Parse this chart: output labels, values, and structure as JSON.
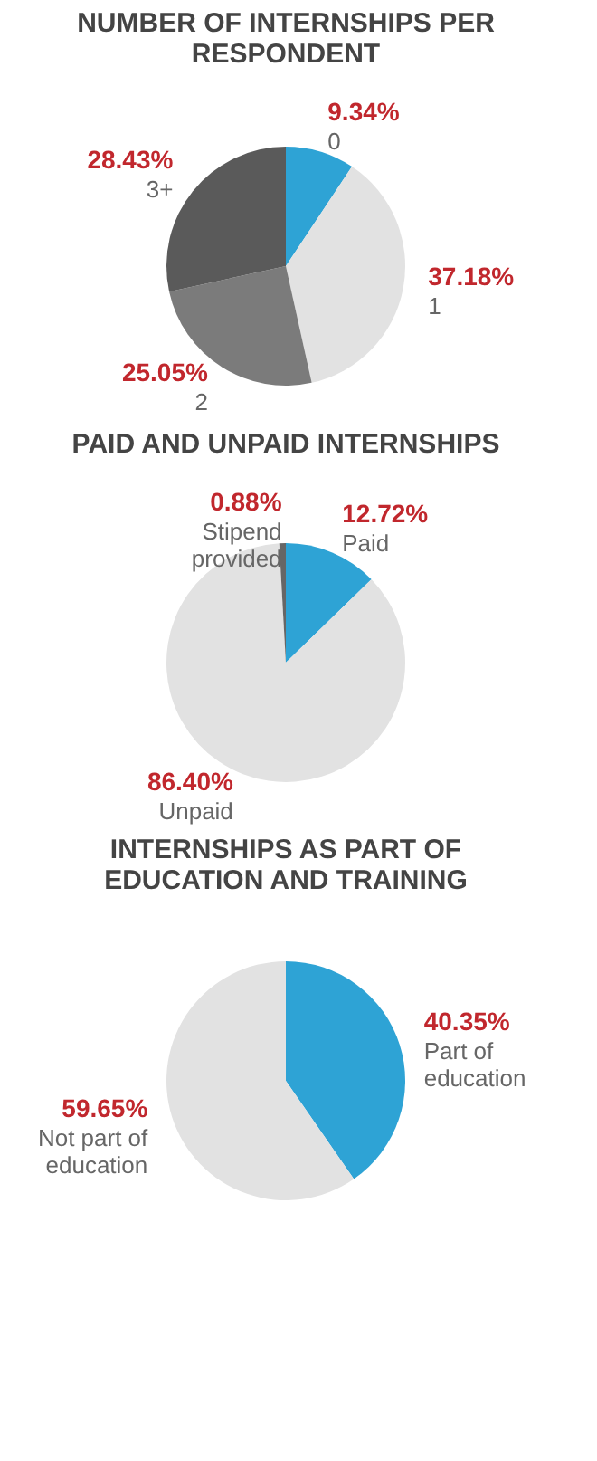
{
  "chart_data": [
    {
      "type": "pie",
      "title": "NUMBER OF INTERNSHIPS PER RESPONDENT",
      "categories": [
        "0",
        "1",
        "2",
        "3+"
      ],
      "values": [
        9.34,
        37.18,
        25.05,
        28.43
      ],
      "colors": [
        "#2ea3d5",
        "#e2e2e2",
        "#7b7b7b",
        "#5a5a5a"
      ],
      "value_labels": [
        "9.34%",
        "37.18%",
        "25.05%",
        "28.43%"
      ]
    },
    {
      "type": "pie",
      "title": "PAID AND UNPAID INTERNSHIPS",
      "categories": [
        "Paid",
        "Unpaid",
        "Stipend provided"
      ],
      "values": [
        12.72,
        86.4,
        0.88
      ],
      "colors": [
        "#2ea3d5",
        "#e2e2e2",
        "#666666"
      ],
      "value_labels": [
        "12.72%",
        "86.40%",
        "0.88%"
      ]
    },
    {
      "type": "pie",
      "title": "INTERNSHIPS AS PART OF EDUCATION AND TRAINING",
      "categories": [
        "Part of education",
        "Not part of education"
      ],
      "values": [
        40.35,
        59.65
      ],
      "colors": [
        "#2ea3d5",
        "#e2e2e2"
      ],
      "value_labels": [
        "40.35%",
        "59.65%"
      ]
    }
  ]
}
